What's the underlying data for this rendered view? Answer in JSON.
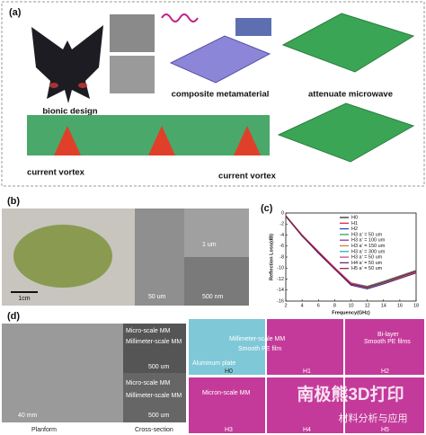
{
  "panel_a": {
    "label": "(a)",
    "bionic_design": "bionic design",
    "composite_metamaterial": "composite metamaterial",
    "attenuate_microwave": "attenuate microwave",
    "current_vortex_left": "current vortex",
    "current_vortex_right": "current vortex"
  },
  "panel_b": {
    "label": "(b)",
    "scale_bars": [
      "1cm",
      "50 um",
      "1 um",
      "500 nm"
    ]
  },
  "panel_c_label": "(c)",
  "chart_data": {
    "type": "line",
    "x_label": "Frequency(GHz)",
    "y_label": "Reflection Loss(dB)",
    "x": [
      2,
      4,
      6,
      8,
      10,
      12,
      14,
      16,
      18
    ],
    "xlim": [
      2,
      18
    ],
    "xticks": [
      2,
      4,
      6,
      8,
      10,
      12,
      14,
      16,
      18
    ],
    "ylim": [
      -16,
      0
    ],
    "yticks": [
      0,
      -2,
      -4,
      -6,
      -8,
      -10,
      -12,
      -14,
      -16
    ],
    "series": [
      {
        "name": "H0",
        "color": "#222222",
        "values": [
          -0.5,
          -4,
          -7,
          -10,
          -12.8,
          -13.5,
          -12.6,
          -11.6,
          -10.6
        ]
      },
      {
        "name": "H1",
        "color": "#d0202a",
        "values": [
          -0.6,
          -4.1,
          -7.1,
          -10.1,
          -12.9,
          -13.4,
          -12.5,
          -11.5,
          -10.5
        ]
      },
      {
        "name": "H2",
        "color": "#2040c0",
        "values": [
          -0.5,
          -4,
          -7.2,
          -10.2,
          -13,
          -13.6,
          -12.7,
          -11.7,
          -10.7
        ]
      },
      {
        "name": "H3 a' = 50 um",
        "color": "#20a040",
        "values": [
          -0.6,
          -4.2,
          -7.1,
          -10,
          -12.7,
          -13.3,
          -12.4,
          -11.4,
          -10.4
        ]
      },
      {
        "name": "H3 a' = 100 um",
        "color": "#9020a0",
        "values": [
          -0.5,
          -4.1,
          -7,
          -10.1,
          -12.9,
          -13.5,
          -12.6,
          -11.5,
          -10.5
        ]
      },
      {
        "name": "H3 a' = 150 um",
        "color": "#d08020",
        "values": [
          -0.5,
          -4,
          -7.1,
          -10,
          -12.8,
          -13.6,
          -12.8,
          -11.8,
          -10.8
        ]
      },
      {
        "name": "H3 a' = 300 um",
        "color": "#20a0c0",
        "values": [
          -0.6,
          -4.1,
          -7.2,
          -10.1,
          -13,
          -13.7,
          -12.7,
          -11.6,
          -10.6
        ]
      },
      {
        "name": "H3 a' = 50 um",
        "color": "#c04080",
        "values": [
          -0.5,
          -4,
          -7,
          -9.9,
          -12.7,
          -13.4,
          -12.5,
          -11.5,
          -10.5
        ]
      },
      {
        "name": "H4 a' = 50 um",
        "color": "#602080",
        "values": [
          -0.6,
          -4.2,
          -7.3,
          -10.2,
          -13.1,
          -13.8,
          -12.9,
          -11.9,
          -10.9
        ]
      },
      {
        "name": "H5 a' = 50 um",
        "color": "#8b1a3a",
        "values": [
          -0.5,
          -4.1,
          -7.1,
          -10.1,
          -12.9,
          -13.5,
          -12.6,
          -11.6,
          -10.6
        ]
      }
    ]
  },
  "panel_d": {
    "label": "(d)",
    "planform_scale": "40 mm",
    "cross_top": [
      "Micro-scale MM",
      "Millimeter-scale MM",
      "500 um"
    ],
    "cross_bottom": [
      "Micro-scale MM",
      "Millimeter-scale MM",
      "500 um"
    ],
    "planform": "Planform",
    "cross_section": "Cross-section",
    "h0_mm": "Millimeter-scale MM",
    "aluminum_plate": "Aluminum plate",
    "smooth_pe_film": "Smooth PE film",
    "bi_layer": "Bi-layer",
    "smooth_pe_films": "Smooth PE films",
    "micron_mm": "Micron-scale MM",
    "models": [
      "H0",
      "H1",
      "H2",
      "H3",
      "H4",
      "H5"
    ]
  },
  "watermarks": [
    "南极熊3D打印",
    "材料分析与应用"
  ]
}
